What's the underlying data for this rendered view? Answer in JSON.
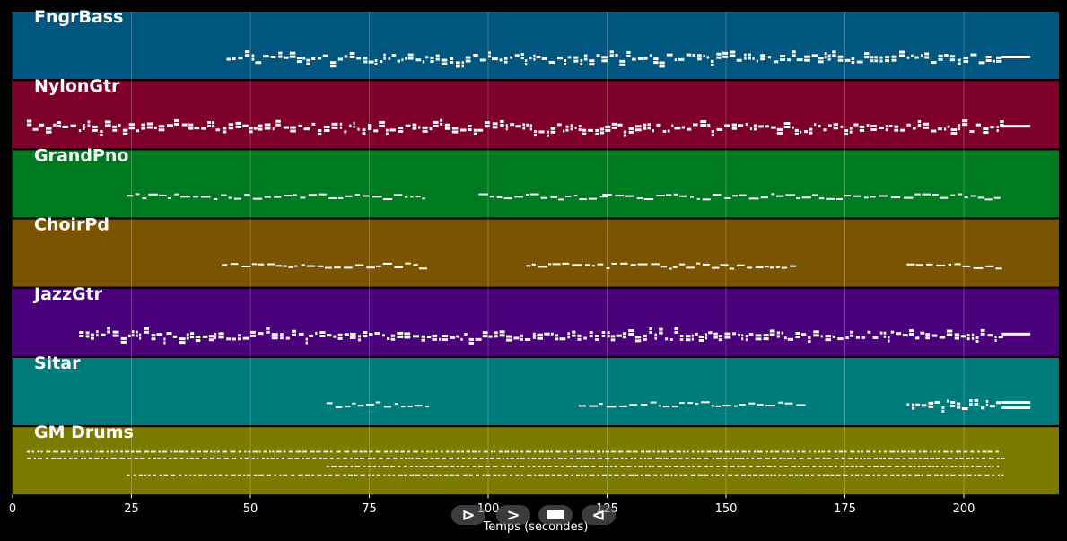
{
  "chart_data": {
    "type": "piano_roll",
    "xlabel": "Temps (secondes)",
    "xlim": [
      0,
      220
    ],
    "xticks": [
      0,
      25,
      50,
      75,
      100,
      125,
      150,
      175,
      200
    ],
    "grid": true,
    "tracks": [
      {
        "name": "FngrBass",
        "color": "#00567e",
        "segments": [
          [
            45,
            208,
            "dense"
          ],
          [
            208,
            214,
            "sustain"
          ]
        ]
      },
      {
        "name": "NylonGtr",
        "color": "#7c0029",
        "segments": [
          [
            3,
            208,
            "dense"
          ],
          [
            208,
            214,
            "sustain"
          ]
        ]
      },
      {
        "name": "GrandPno",
        "color": "#007a20",
        "segments": [
          [
            24,
            87,
            "sparse"
          ],
          [
            98,
            124,
            "sparse"
          ],
          [
            124,
            208,
            "sparse"
          ]
        ]
      },
      {
        "name": "ChoirPd",
        "color": "#7a5400",
        "segments": [
          [
            44,
            87,
            "sparse"
          ],
          [
            108,
            165,
            "sparse"
          ],
          [
            188,
            208,
            "sparse"
          ]
        ]
      },
      {
        "name": "JazzGtr",
        "color": "#4a007a",
        "segments": [
          [
            14,
            208,
            "dense"
          ],
          [
            208,
            214,
            "sustain"
          ]
        ]
      },
      {
        "name": "Sitar",
        "color": "#007b7b",
        "segments": [
          [
            66,
            87,
            "sparse"
          ],
          [
            119,
            166,
            "sparse"
          ],
          [
            188,
            208,
            "dense"
          ],
          [
            208,
            214,
            "sustain"
          ]
        ]
      },
      {
        "name": "GM Drums",
        "color": "#7b7b00",
        "segments": [
          [
            3,
            208,
            "drums"
          ]
        ]
      }
    ]
  },
  "controls": [
    {
      "label": "⊳",
      "icon": "step-forward-icon"
    },
    {
      "label": ">",
      "icon": "play-icon"
    },
    {
      "label": "",
      "icon": "stop-icon"
    },
    {
      "label": "⊲",
      "icon": "step-back-icon"
    }
  ]
}
